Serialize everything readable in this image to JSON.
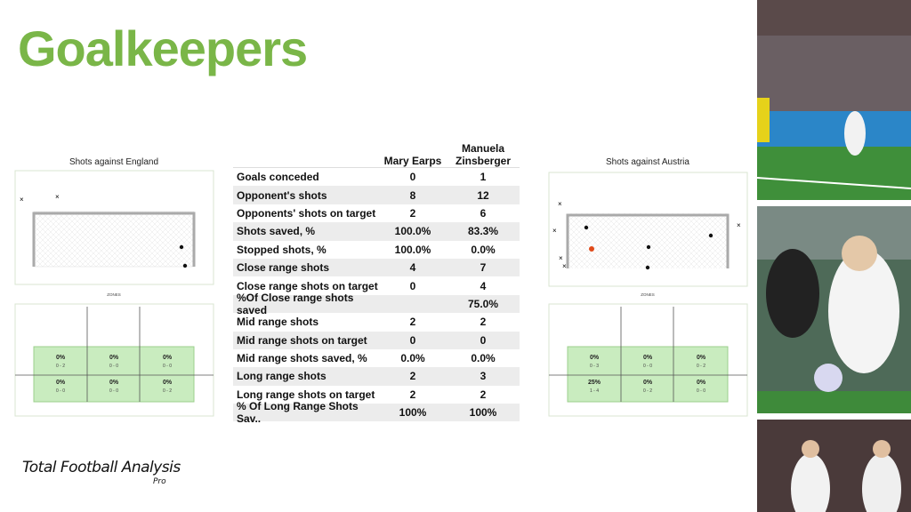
{
  "header": {
    "title": "Goalkeepers"
  },
  "table": {
    "headers": [
      "Mary Earps",
      "Manuela Zinsberger"
    ],
    "rows": [
      [
        "Goals conceded",
        "0",
        "1"
      ],
      [
        "Opponent's shots",
        "8",
        "12"
      ],
      [
        "Opponents' shots  on target",
        "2",
        "6"
      ],
      [
        "Shots saved, %",
        "100.0%",
        "83.3%"
      ],
      [
        "Stopped shots, %",
        "100.0%",
        "0.0%"
      ],
      [
        "Close range shots",
        "4",
        "7"
      ],
      [
        "Close range shots on target",
        "0",
        "4"
      ],
      [
        "%Of Close range shots saved",
        null,
        "75.0%"
      ],
      [
        "Mid range shots",
        "2",
        "2"
      ],
      [
        "Mid range shots on target",
        "0",
        "0"
      ],
      [
        "Mid range shots saved, %",
        "0.0%",
        "0.0%"
      ],
      [
        "Long range shots",
        "2",
        "3"
      ],
      [
        "Long range shots on target",
        "2",
        "2"
      ],
      [
        "% Of Long Range Shots Sav..",
        "100%",
        "100%"
      ]
    ]
  },
  "panels": [
    {
      "title": "Shots against England",
      "zones_label": "ZONES",
      "zones": [
        [
          [
            "0%",
            "0 - 2"
          ],
          [
            "0%",
            "0 - 0"
          ],
          [
            "0%",
            "0 - 0"
          ]
        ],
        [
          [
            "0%",
            "0 - 0"
          ],
          [
            "0%",
            "0 - 0"
          ],
          [
            "0%",
            "0 - 2"
          ]
        ]
      ]
    },
    {
      "title": "Shots against Austria",
      "zones_label": "ZONES",
      "zones": [
        [
          [
            "0%",
            "0 - 3"
          ],
          [
            "0%",
            "0 - 0"
          ],
          [
            "0%",
            "0 - 2"
          ]
        ],
        [
          [
            "25%",
            "1 - 4"
          ],
          [
            "0%",
            "0 - 2"
          ],
          [
            "0%",
            "0 - 0"
          ]
        ]
      ]
    }
  ],
  "logo": {
    "name": "Total Football Analysis",
    "tag": "Pro"
  }
}
